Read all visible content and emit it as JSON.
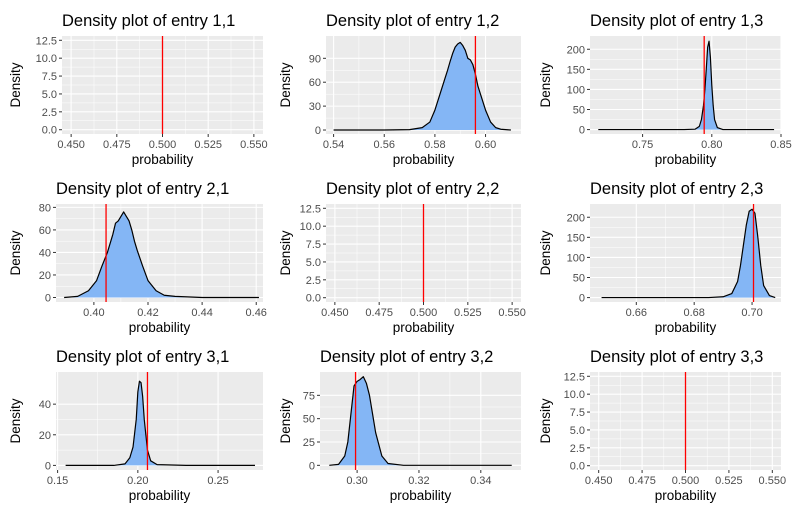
{
  "chart_data": [
    {
      "type": "area",
      "title": "Density plot of entry 1,1",
      "xlabel": "probability",
      "ylabel": "Density",
      "xlim": [
        0.445,
        0.555
      ],
      "ylim": [
        -0.6,
        13.1
      ],
      "xticks": [
        0.45,
        0.475,
        0.5,
        0.525,
        0.55
      ],
      "xtick_labels": [
        "0.450",
        "0.475",
        "0.500",
        "0.525",
        "0.550"
      ],
      "yticks": [
        0,
        2.5,
        5,
        7.5,
        10,
        12.5
      ],
      "ytick_labels": [
        "0.0",
        "2.5",
        "5.0",
        "7.5",
        "10.0",
        "12.5"
      ],
      "reference_line": 0.5,
      "density": null
    },
    {
      "type": "area",
      "title": "Density plot of entry 1,2",
      "xlabel": "probability",
      "ylabel": "Density",
      "xlim": [
        0.537,
        0.614
      ],
      "ylim": [
        -5,
        118
      ],
      "xticks": [
        0.54,
        0.56,
        0.58,
        0.6
      ],
      "xtick_labels": [
        "0.54",
        "0.56",
        "0.58",
        "0.60"
      ],
      "yticks": [
        0,
        30,
        60,
        90
      ],
      "ytick_labels": [
        "0",
        "30",
        "60",
        "90"
      ],
      "reference_line": 0.596,
      "density": {
        "x": [
          0.54,
          0.56,
          0.57,
          0.575,
          0.578,
          0.58,
          0.582,
          0.584,
          0.585,
          0.586,
          0.587,
          0.588,
          0.589,
          0.59,
          0.591,
          0.592,
          0.593,
          0.594,
          0.595,
          0.596,
          0.597,
          0.598,
          0.6,
          0.602,
          0.604,
          0.606,
          0.61
        ],
        "y": [
          0,
          0,
          0.5,
          3,
          10,
          25,
          45,
          65,
          75,
          86,
          96,
          104,
          108,
          110,
          106,
          100,
          90,
          88,
          82,
          70,
          55,
          45,
          25,
          10,
          3,
          1,
          0
        ]
      }
    },
    {
      "type": "area",
      "title": "Density plot of entry 1,3",
      "xlabel": "probability",
      "ylabel": "Density",
      "xlim": [
        0.712,
        0.85
      ],
      "ylim": [
        -11,
        233
      ],
      "xticks": [
        0.75,
        0.8,
        0.85
      ],
      "xtick_labels": [
        "0.75",
        "0.80",
        "0.85"
      ],
      "yticks": [
        0,
        50,
        100,
        150,
        200
      ],
      "ytick_labels": [
        "0",
        "50",
        "100",
        "150",
        "200"
      ],
      "reference_line": 0.7945,
      "density": {
        "x": [
          0.718,
          0.78,
          0.788,
          0.791,
          0.7925,
          0.794,
          0.795,
          0.796,
          0.797,
          0.798,
          0.799,
          0.8,
          0.801,
          0.802,
          0.804,
          0.808,
          0.845
        ],
        "y": [
          0,
          0,
          1,
          8,
          25,
          60,
          100,
          150,
          205,
          220,
          180,
          110,
          60,
          25,
          5,
          0,
          0
        ]
      }
    },
    {
      "type": "area",
      "title": "Density plot of entry 2,1",
      "xlabel": "probability",
      "ylabel": "Density",
      "xlim": [
        0.386,
        0.4625
      ],
      "ylim": [
        -4,
        83
      ],
      "xticks": [
        0.4,
        0.42,
        0.44,
        0.46
      ],
      "xtick_labels": [
        "0.40",
        "0.42",
        "0.44",
        "0.46"
      ],
      "yticks": [
        0,
        20,
        40,
        60,
        80
      ],
      "ytick_labels": [
        "0",
        "20",
        "40",
        "60",
        "80"
      ],
      "reference_line": 0.4045,
      "density": {
        "x": [
          0.389,
          0.394,
          0.398,
          0.401,
          0.403,
          0.405,
          0.407,
          0.408,
          0.409,
          0.41,
          0.411,
          0.412,
          0.413,
          0.414,
          0.415,
          0.416,
          0.418,
          0.42,
          0.423,
          0.426,
          0.43,
          0.44,
          0.461
        ],
        "y": [
          0,
          1,
          6,
          15,
          28,
          40,
          56,
          66,
          68,
          72,
          76,
          72,
          68,
          60,
          50,
          42,
          28,
          15,
          6,
          2,
          1,
          0,
          0
        ]
      }
    },
    {
      "type": "area",
      "title": "Density plot of entry 2,2",
      "xlabel": "probability",
      "ylabel": "Density",
      "xlim": [
        0.445,
        0.555
      ],
      "ylim": [
        -0.6,
        13.1
      ],
      "xticks": [
        0.45,
        0.475,
        0.5,
        0.525,
        0.55
      ],
      "xtick_labels": [
        "0.450",
        "0.475",
        "0.500",
        "0.525",
        "0.550"
      ],
      "yticks": [
        0,
        2.5,
        5,
        7.5,
        10,
        12.5
      ],
      "ytick_labels": [
        "0.0",
        "2.5",
        "5.0",
        "7.5",
        "10.0",
        "12.5"
      ],
      "reference_line": 0.5,
      "density": null
    },
    {
      "type": "area",
      "title": "Density plot of entry 2,3",
      "xlabel": "probability",
      "ylabel": "Density",
      "xlim": [
        0.644,
        0.71
      ],
      "ylim": [
        -11,
        233
      ],
      "xticks": [
        0.66,
        0.68,
        0.7
      ],
      "xtick_labels": [
        "0.66",
        "0.68",
        "0.70"
      ],
      "yticks": [
        0,
        50,
        100,
        150,
        200
      ],
      "ytick_labels": [
        "0",
        "50",
        "100",
        "150",
        "200"
      ],
      "reference_line": 0.7005,
      "density": {
        "x": [
          0.648,
          0.685,
          0.69,
          0.693,
          0.695,
          0.696,
          0.697,
          0.698,
          0.699,
          0.7,
          0.701,
          0.702,
          0.703,
          0.704,
          0.706,
          0.708
        ],
        "y": [
          0,
          0,
          2,
          10,
          40,
          80,
          130,
          180,
          215,
          220,
          210,
          150,
          80,
          30,
          5,
          0
        ]
      }
    },
    {
      "type": "area",
      "title": "Density plot of entry 3,1",
      "xlabel": "probability",
      "ylabel": "Density",
      "xlim": [
        0.149,
        0.278
      ],
      "ylim": [
        -3,
        61
      ],
      "xticks": [
        0.15,
        0.2,
        0.25
      ],
      "xtick_labels": [
        "0.15",
        "0.20",
        "0.25"
      ],
      "yticks": [
        0,
        20,
        40
      ],
      "ytick_labels": [
        "0",
        "20",
        "40"
      ],
      "reference_line": 0.206,
      "density": {
        "x": [
          0.155,
          0.185,
          0.192,
          0.195,
          0.197,
          0.199,
          0.2,
          0.201,
          0.202,
          0.203,
          0.204,
          0.205,
          0.206,
          0.208,
          0.212,
          0.23,
          0.273
        ],
        "y": [
          0,
          0,
          1,
          5,
          12,
          30,
          48,
          55,
          54,
          45,
          30,
          20,
          10,
          3,
          0.5,
          0,
          0
        ]
      }
    },
    {
      "type": "area",
      "title": "Density plot of entry 3,2",
      "xlabel": "probability",
      "ylabel": "Density",
      "xlim": [
        0.288,
        0.353
      ],
      "ylim": [
        -5,
        100
      ],
      "xticks": [
        0.3,
        0.32,
        0.34
      ],
      "xtick_labels": [
        "0.30",
        "0.32",
        "0.34"
      ],
      "yticks": [
        0,
        25,
        50,
        75
      ],
      "ytick_labels": [
        "0",
        "25",
        "50",
        "75"
      ],
      "reference_line": 0.2995,
      "density": {
        "x": [
          0.291,
          0.294,
          0.296,
          0.297,
          0.298,
          0.299,
          0.3,
          0.301,
          0.302,
          0.303,
          0.304,
          0.305,
          0.306,
          0.308,
          0.31,
          0.315,
          0.35
        ],
        "y": [
          0,
          1,
          10,
          25,
          55,
          85,
          90,
          92,
          95,
          88,
          75,
          55,
          35,
          10,
          2,
          0,
          0
        ]
      }
    },
    {
      "type": "area",
      "title": "Density plot of entry 3,3",
      "xlabel": "probability",
      "ylabel": "Density",
      "xlim": [
        0.445,
        0.555
      ],
      "ylim": [
        -0.6,
        13.1
      ],
      "xticks": [
        0.45,
        0.475,
        0.5,
        0.525,
        0.55
      ],
      "xtick_labels": [
        "0.450",
        "0.475",
        "0.500",
        "0.525",
        "0.550"
      ],
      "yticks": [
        0,
        2.5,
        5,
        7.5,
        10,
        12.5
      ],
      "ytick_labels": [
        "0.0",
        "2.5",
        "5.0",
        "7.5",
        "10.0",
        "12.5"
      ],
      "reference_line": 0.5,
      "density": null
    }
  ],
  "colors": {
    "panel_background": "#ebebeb",
    "grid": "#ffffff",
    "fill": "#84b6f5",
    "outline": "#000000",
    "reference_line": "#ff0000",
    "tick_text": "#4d4d4d"
  }
}
